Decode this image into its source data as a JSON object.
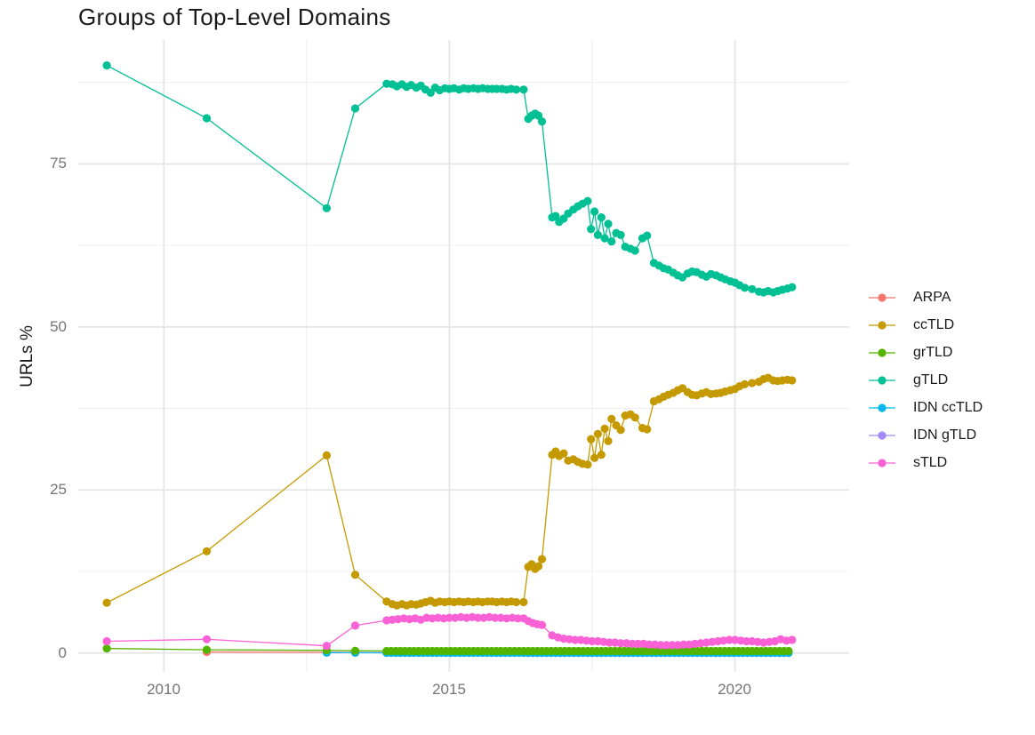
{
  "title": "Groups of Top-Level Domains",
  "axes": {
    "y_title": "URLs %",
    "y_ticks": [
      "0",
      "25",
      "50",
      "75"
    ],
    "x_ticks": [
      "2010",
      "2015",
      "2020"
    ]
  },
  "legend": {
    "items": [
      {
        "label": "ARPA",
        "color": "#F8766D"
      },
      {
        "label": "ccTLD",
        "color": "#C49A00"
      },
      {
        "label": "grTLD",
        "color": "#53B400"
      },
      {
        "label": "gTLD",
        "color": "#00C094"
      },
      {
        "label": "IDN ccTLD",
        "color": "#00B6EB"
      },
      {
        "label": "IDN gTLD",
        "color": "#A58AFF"
      },
      {
        "label": "sTLD",
        "color": "#FB61D7"
      }
    ]
  },
  "chart_data": {
    "type": "line",
    "title": "Groups of Top-Level Domains",
    "xlabel": "",
    "ylabel": "URLs %",
    "xlim": [
      2008.5,
      2022.0
    ],
    "ylim": [
      -2.9,
      94.0
    ],
    "x_major": [
      2010,
      2015,
      2020
    ],
    "x_minor": [
      2012.5,
      2017.5
    ],
    "y_major": [
      0,
      25,
      50,
      75
    ],
    "y_minor": [
      12.5,
      37.5,
      62.5,
      87.5
    ],
    "grid": true,
    "legend_position": "right",
    "series": [
      {
        "name": "ARPA",
        "color": "#F8766D",
        "points": [
          [
            2010.75,
            0.15
          ],
          [
            2012.85,
            0.1
          ],
          [
            2013.35,
            0.08
          ],
          [
            2013.9,
            0.05
          ]
        ]
      },
      {
        "name": "ccTLD",
        "color": "#C49A00",
        "points": [
          [
            2009.0,
            7.7
          ],
          [
            2010.75,
            15.6
          ],
          [
            2012.85,
            30.3
          ],
          [
            2013.35,
            12.0
          ],
          [
            2013.9,
            7.9
          ],
          [
            2014.0,
            7.5
          ],
          [
            2014.08,
            7.3
          ],
          [
            2014.17,
            7.5
          ],
          [
            2014.25,
            7.3
          ],
          [
            2014.33,
            7.5
          ],
          [
            2014.42,
            7.4
          ],
          [
            2014.5,
            7.6
          ],
          [
            2014.58,
            7.8
          ],
          [
            2014.67,
            8.0
          ],
          [
            2014.75,
            7.7
          ],
          [
            2014.83,
            7.9
          ],
          [
            2014.92,
            7.8
          ],
          [
            2015.0,
            7.9
          ],
          [
            2015.08,
            7.8
          ],
          [
            2015.17,
            7.9
          ],
          [
            2015.25,
            7.8
          ],
          [
            2015.33,
            7.9
          ],
          [
            2015.42,
            7.8
          ],
          [
            2015.5,
            7.9
          ],
          [
            2015.58,
            7.8
          ],
          [
            2015.67,
            7.9
          ],
          [
            2015.75,
            7.9
          ],
          [
            2015.83,
            7.8
          ],
          [
            2015.92,
            7.9
          ],
          [
            2016.0,
            7.8
          ],
          [
            2016.08,
            7.9
          ],
          [
            2016.17,
            7.8
          ],
          [
            2016.3,
            7.8
          ],
          [
            2016.38,
            13.2
          ],
          [
            2016.44,
            13.6
          ],
          [
            2016.5,
            12.9
          ],
          [
            2016.56,
            13.3
          ],
          [
            2016.62,
            14.4
          ],
          [
            2016.8,
            30.4
          ],
          [
            2016.86,
            30.9
          ],
          [
            2016.92,
            30.2
          ],
          [
            2017.0,
            30.6
          ],
          [
            2017.08,
            29.5
          ],
          [
            2017.17,
            29.7
          ],
          [
            2017.25,
            29.3
          ],
          [
            2017.33,
            29.0
          ],
          [
            2017.42,
            28.9
          ],
          [
            2017.48,
            32.8
          ],
          [
            2017.54,
            29.9
          ],
          [
            2017.6,
            33.6
          ],
          [
            2017.66,
            30.4
          ],
          [
            2017.72,
            34.4
          ],
          [
            2017.78,
            32.5
          ],
          [
            2017.84,
            35.9
          ],
          [
            2017.92,
            34.9
          ],
          [
            2018.0,
            34.2
          ],
          [
            2018.08,
            36.4
          ],
          [
            2018.17,
            36.6
          ],
          [
            2018.25,
            36.1
          ],
          [
            2018.38,
            34.5
          ],
          [
            2018.46,
            34.3
          ],
          [
            2018.58,
            38.6
          ],
          [
            2018.67,
            38.9
          ],
          [
            2018.75,
            39.3
          ],
          [
            2018.83,
            39.6
          ],
          [
            2018.92,
            39.9
          ],
          [
            2019.0,
            40.3
          ],
          [
            2019.08,
            40.6
          ],
          [
            2019.17,
            40.0
          ],
          [
            2019.25,
            39.6
          ],
          [
            2019.33,
            39.5
          ],
          [
            2019.42,
            39.8
          ],
          [
            2019.5,
            40.0
          ],
          [
            2019.58,
            39.7
          ],
          [
            2019.67,
            39.8
          ],
          [
            2019.75,
            39.9
          ],
          [
            2019.83,
            40.1
          ],
          [
            2019.92,
            40.3
          ],
          [
            2020.0,
            40.5
          ],
          [
            2020.08,
            40.9
          ],
          [
            2020.17,
            41.2
          ],
          [
            2020.3,
            41.4
          ],
          [
            2020.42,
            41.6
          ],
          [
            2020.5,
            42.0
          ],
          [
            2020.58,
            42.2
          ],
          [
            2020.67,
            41.8
          ],
          [
            2020.75,
            41.7
          ],
          [
            2020.83,
            41.8
          ],
          [
            2020.92,
            41.9
          ],
          [
            2021.0,
            41.8
          ]
        ]
      },
      {
        "name": "grTLD",
        "color": "#53B400",
        "points": [
          [
            2009.0,
            0.7
          ],
          [
            2010.75,
            0.5
          ],
          [
            2012.85,
            0.4
          ],
          [
            2013.35,
            0.35
          ]
        ],
        "flat": {
          "from": 2013.9,
          "to": 2021.0,
          "step": 0.08,
          "value": 0.3
        }
      },
      {
        "name": "gTLD",
        "color": "#00C094",
        "points": [
          [
            2009.0,
            90.1
          ],
          [
            2010.75,
            82.0
          ],
          [
            2012.85,
            68.2
          ],
          [
            2013.35,
            83.5
          ],
          [
            2013.9,
            87.3
          ],
          [
            2014.0,
            87.2
          ],
          [
            2014.08,
            86.9
          ],
          [
            2014.17,
            87.2
          ],
          [
            2014.25,
            86.8
          ],
          [
            2014.33,
            87.1
          ],
          [
            2014.42,
            86.7
          ],
          [
            2014.5,
            87.0
          ],
          [
            2014.58,
            86.4
          ],
          [
            2014.67,
            85.9
          ],
          [
            2014.75,
            86.7
          ],
          [
            2014.83,
            86.3
          ],
          [
            2014.92,
            86.6
          ],
          [
            2015.0,
            86.5
          ],
          [
            2015.08,
            86.6
          ],
          [
            2015.17,
            86.4
          ],
          [
            2015.25,
            86.6
          ],
          [
            2015.33,
            86.5
          ],
          [
            2015.42,
            86.6
          ],
          [
            2015.5,
            86.5
          ],
          [
            2015.58,
            86.6
          ],
          [
            2015.67,
            86.5
          ],
          [
            2015.75,
            86.5
          ],
          [
            2015.83,
            86.5
          ],
          [
            2015.92,
            86.5
          ],
          [
            2016.0,
            86.4
          ],
          [
            2016.08,
            86.5
          ],
          [
            2016.17,
            86.4
          ],
          [
            2016.3,
            86.4
          ],
          [
            2016.38,
            81.9
          ],
          [
            2016.44,
            82.4
          ],
          [
            2016.5,
            82.7
          ],
          [
            2016.56,
            82.4
          ],
          [
            2016.62,
            81.5
          ],
          [
            2016.8,
            66.8
          ],
          [
            2016.86,
            67.0
          ],
          [
            2016.92,
            66.1
          ],
          [
            2017.0,
            66.6
          ],
          [
            2017.08,
            67.4
          ],
          [
            2017.17,
            68.0
          ],
          [
            2017.25,
            68.5
          ],
          [
            2017.33,
            68.9
          ],
          [
            2017.42,
            69.3
          ],
          [
            2017.48,
            65.0
          ],
          [
            2017.54,
            67.7
          ],
          [
            2017.6,
            64.1
          ],
          [
            2017.66,
            66.8
          ],
          [
            2017.72,
            63.6
          ],
          [
            2017.78,
            65.8
          ],
          [
            2017.84,
            63.1
          ],
          [
            2017.92,
            64.4
          ],
          [
            2018.0,
            64.1
          ],
          [
            2018.08,
            62.3
          ],
          [
            2018.17,
            62.0
          ],
          [
            2018.25,
            61.7
          ],
          [
            2018.38,
            63.6
          ],
          [
            2018.46,
            64.0
          ],
          [
            2018.58,
            59.8
          ],
          [
            2018.67,
            59.4
          ],
          [
            2018.75,
            59.0
          ],
          [
            2018.83,
            58.8
          ],
          [
            2018.92,
            58.3
          ],
          [
            2019.0,
            57.9
          ],
          [
            2019.08,
            57.6
          ],
          [
            2019.17,
            58.2
          ],
          [
            2019.25,
            58.5
          ],
          [
            2019.33,
            58.4
          ],
          [
            2019.42,
            58.0
          ],
          [
            2019.5,
            57.7
          ],
          [
            2019.58,
            58.1
          ],
          [
            2019.67,
            57.9
          ],
          [
            2019.75,
            57.6
          ],
          [
            2019.83,
            57.3
          ],
          [
            2019.92,
            57.0
          ],
          [
            2020.0,
            56.8
          ],
          [
            2020.08,
            56.4
          ],
          [
            2020.17,
            56.0
          ],
          [
            2020.3,
            55.8
          ],
          [
            2020.42,
            55.4
          ],
          [
            2020.5,
            55.3
          ],
          [
            2020.58,
            55.5
          ],
          [
            2020.67,
            55.3
          ],
          [
            2020.75,
            55.5
          ],
          [
            2020.83,
            55.7
          ],
          [
            2020.92,
            55.9
          ],
          [
            2021.0,
            56.1
          ]
        ]
      },
      {
        "name": "IDN ccTLD",
        "color": "#00B6EB",
        "points": [
          [
            2012.85,
            0.05
          ],
          [
            2013.35,
            0.04
          ]
        ],
        "flat": {
          "from": 2013.9,
          "to": 2021.0,
          "step": 0.08,
          "value": 0.03
        }
      },
      {
        "name": "IDN gTLD",
        "color": "#A58AFF",
        "points": [],
        "flat": {
          "from": 2016.38,
          "to": 2021.0,
          "step": 0.08,
          "value": 0.02
        }
      },
      {
        "name": "sTLD",
        "color": "#FB61D7",
        "points": [
          [
            2009.0,
            1.8
          ],
          [
            2010.75,
            2.1
          ],
          [
            2012.85,
            1.1
          ],
          [
            2013.35,
            4.2
          ],
          [
            2013.9,
            5.0
          ],
          [
            2014.0,
            5.1
          ],
          [
            2014.1,
            5.2
          ],
          [
            2014.2,
            5.3
          ],
          [
            2014.3,
            5.2
          ],
          [
            2014.4,
            5.3
          ],
          [
            2014.5,
            5.1
          ],
          [
            2014.6,
            5.4
          ],
          [
            2014.7,
            5.3
          ],
          [
            2014.8,
            5.4
          ],
          [
            2014.9,
            5.3
          ],
          [
            2015.0,
            5.4
          ],
          [
            2015.1,
            5.4
          ],
          [
            2015.2,
            5.5
          ],
          [
            2015.3,
            5.4
          ],
          [
            2015.4,
            5.5
          ],
          [
            2015.5,
            5.4
          ],
          [
            2015.6,
            5.4
          ],
          [
            2015.7,
            5.5
          ],
          [
            2015.8,
            5.4
          ],
          [
            2015.9,
            5.4
          ],
          [
            2016.0,
            5.3
          ],
          [
            2016.1,
            5.4
          ],
          [
            2016.2,
            5.3
          ],
          [
            2016.3,
            5.3
          ],
          [
            2016.38,
            4.9
          ],
          [
            2016.46,
            4.6
          ],
          [
            2016.54,
            4.4
          ],
          [
            2016.62,
            4.3
          ],
          [
            2016.8,
            2.7
          ],
          [
            2016.9,
            2.4
          ],
          [
            2017.0,
            2.2
          ],
          [
            2017.1,
            2.1
          ],
          [
            2017.2,
            2.0
          ],
          [
            2017.3,
            2.0
          ],
          [
            2017.4,
            1.9
          ],
          [
            2017.5,
            1.8
          ],
          [
            2017.6,
            1.8
          ],
          [
            2017.7,
            1.7
          ],
          [
            2017.8,
            1.6
          ],
          [
            2017.9,
            1.6
          ],
          [
            2018.0,
            1.5
          ],
          [
            2018.1,
            1.5
          ],
          [
            2018.2,
            1.4
          ],
          [
            2018.3,
            1.4
          ],
          [
            2018.4,
            1.4
          ],
          [
            2018.5,
            1.3
          ],
          [
            2018.6,
            1.3
          ],
          [
            2018.7,
            1.2
          ],
          [
            2018.8,
            1.2
          ],
          [
            2018.9,
            1.2
          ],
          [
            2019.0,
            1.2
          ],
          [
            2019.1,
            1.3
          ],
          [
            2019.2,
            1.3
          ],
          [
            2019.3,
            1.4
          ],
          [
            2019.4,
            1.5
          ],
          [
            2019.5,
            1.6
          ],
          [
            2019.6,
            1.7
          ],
          [
            2019.7,
            1.8
          ],
          [
            2019.8,
            1.9
          ],
          [
            2019.9,
            2.0
          ],
          [
            2020.0,
            2.0
          ],
          [
            2020.1,
            1.9
          ],
          [
            2020.2,
            1.8
          ],
          [
            2020.3,
            1.8
          ],
          [
            2020.4,
            1.7
          ],
          [
            2020.5,
            1.6
          ],
          [
            2020.6,
            1.7
          ],
          [
            2020.7,
            1.8
          ],
          [
            2020.8,
            2.1
          ],
          [
            2020.9,
            1.9
          ],
          [
            2021.0,
            2.0
          ]
        ]
      }
    ]
  }
}
